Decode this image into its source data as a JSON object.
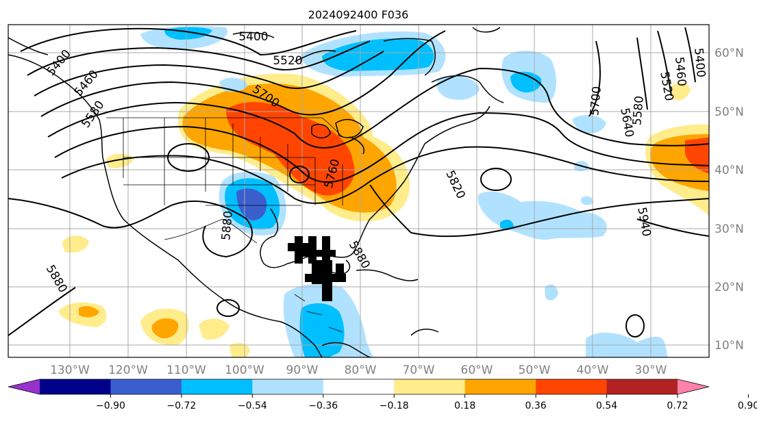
{
  "title": "2024092400 F036",
  "map": {
    "projection": "PlateCarree",
    "lon_range": [
      -138,
      -17
    ],
    "lat_range": [
      7.5,
      64.5
    ],
    "lon_labels": [
      "130°W",
      "120°W",
      "110°W",
      "100°W",
      "90°W",
      "80°W",
      "70°W",
      "60°W",
      "50°W",
      "40°W",
      "30°W"
    ],
    "lat_labels": [
      "60°N",
      "50°N",
      "40°N",
      "30°N",
      "20°N",
      "10°N"
    ],
    "gridlines": true,
    "coastlines": true,
    "borders": true,
    "contour_field": "500 hPa geopotential height",
    "contour_labels": [
      "5400",
      "5460",
      "5520",
      "5580",
      "5640",
      "5700",
      "5760",
      "5820",
      "5880",
      "5940"
    ]
  },
  "colorbar": {
    "orientation": "horizontal",
    "extend": "both",
    "tick_labels": [
      "−0.90",
      "−0.72",
      "−0.54",
      "−0.36",
      "−0.18",
      "0.18",
      "0.36",
      "0.54",
      "0.72",
      "0.90"
    ],
    "colors": [
      "#9932cc",
      "#00008b",
      "#3a5fcd",
      "#00bfff",
      "#b0e2ff",
      "#ffffff",
      "#ffec8b",
      "#ffa500",
      "#ff4500",
      "#b22222",
      "#ff82ab"
    ]
  }
}
